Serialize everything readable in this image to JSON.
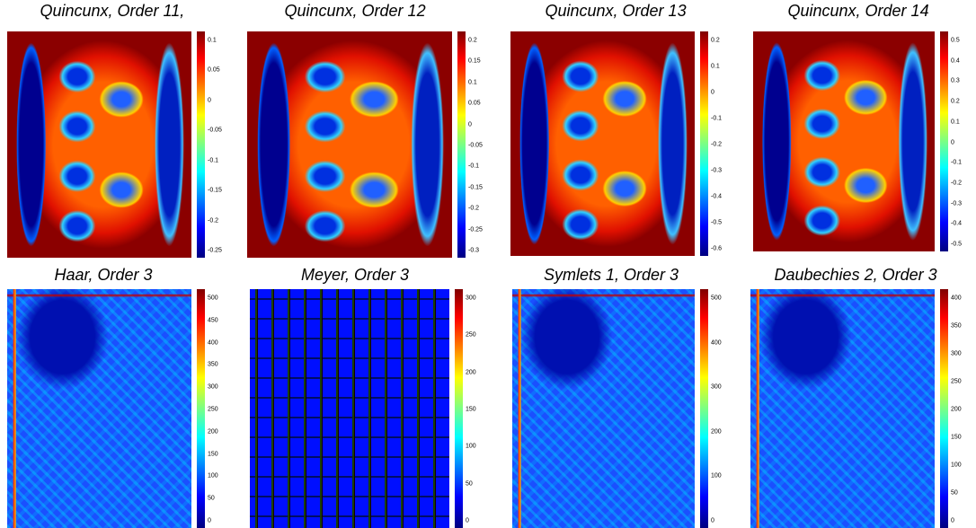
{
  "panels": [
    {
      "title": "Quincunx, Order 11,",
      "ticks": [
        "0.1",
        "0.05",
        "0",
        "-0.05",
        "-0.1",
        "-0.15",
        "-0.2",
        "-0.25"
      ]
    },
    {
      "title": "Quincunx, Order 12",
      "ticks": [
        "0.2",
        "0.15",
        "0.1",
        "0.05",
        "0",
        "-0.05",
        "-0.1",
        "-0.15",
        "-0.2",
        "-0.25",
        "-0.3"
      ]
    },
    {
      "title": "Quincunx, Order 13",
      "ticks": [
        "0.2",
        "0.1",
        "0",
        "-0.1",
        "-0.2",
        "-0.3",
        "-0.4",
        "-0.5",
        "-0.6"
      ]
    },
    {
      "title": "Quincunx, Order 14",
      "ticks": [
        "0.5",
        "0.4",
        "0.3",
        "0.2",
        "0.1",
        "0",
        "-0.1",
        "-0.2",
        "-0.3",
        "-0.4",
        "-0.5"
      ]
    },
    {
      "title": "Haar, Order 3",
      "ticks": [
        "500",
        "450",
        "400",
        "350",
        "300",
        "250",
        "200",
        "150",
        "100",
        "50",
        "0"
      ]
    },
    {
      "title": "Meyer, Order 3",
      "ticks": [
        "300",
        "250",
        "200",
        "150",
        "100",
        "50",
        "0"
      ]
    },
    {
      "title": "Symlets 1, Order 3",
      "ticks": [
        "500",
        "400",
        "300",
        "200",
        "100",
        "0"
      ]
    },
    {
      "title": "Daubechies 2, Order 3",
      "ticks": [
        "400",
        "350",
        "300",
        "250",
        "200",
        "150",
        "100",
        "50",
        "0"
      ]
    }
  ]
}
